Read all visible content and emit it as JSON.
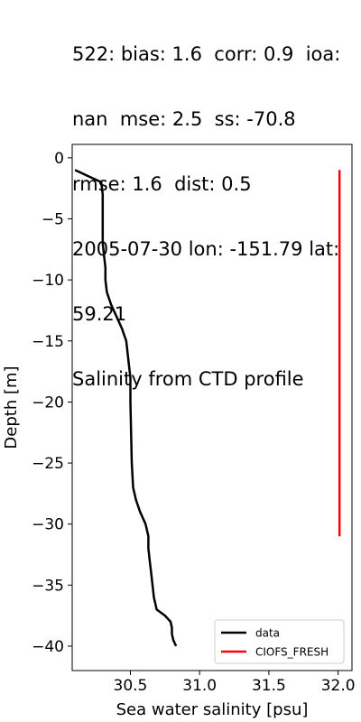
{
  "title_lines": [
    "522: bias: 1.6  corr: 0.9  ioa:",
    "nan  mse: 2.5  ss: -70.8",
    "rmse: 1.6  dist: 0.5",
    "2005-07-30 lon: -151.79 lat:",
    "59.21",
    "Salinity from CTD profile"
  ],
  "colors": {
    "data": "#000000",
    "model": "#ff0000"
  },
  "chart_data": {
    "type": "line",
    "title": "522: bias: 1.6  corr: 0.9  ioa: nan  mse: 2.5  ss: -70.8 rmse: 1.6  dist: 0.5 2005-07-30 lon: -151.79 lat: 59.21 Salinity from CTD profile",
    "xlabel": "Sea water salinity [psu]",
    "ylabel": "Depth [m]",
    "xlim": [
      30.08,
      32.1
    ],
    "ylim": [
      -42,
      1.1
    ],
    "xticks": [
      30.5,
      31.0,
      31.5,
      32.0
    ],
    "xtick_labels": [
      "30.5",
      "31.0",
      "31.5",
      "32.0"
    ],
    "yticks": [
      0,
      -5,
      -10,
      -15,
      -20,
      -25,
      -30,
      -35,
      -40
    ],
    "ytick_labels": [
      "0",
      "−5",
      "−10",
      "−15",
      "−20",
      "−25",
      "−30",
      "−35",
      "−40"
    ],
    "legend_position": "lower-right",
    "grid": false,
    "series": [
      {
        "name": "data",
        "x": [
          30.1,
          30.29,
          30.3,
          30.3,
          30.3,
          30.31,
          30.32,
          30.32,
          30.33,
          30.36,
          30.4,
          30.44,
          30.47,
          30.48,
          30.49,
          30.5,
          30.5,
          30.5,
          30.51,
          30.52,
          30.54,
          30.57,
          30.61,
          30.63,
          30.63,
          30.64,
          30.65,
          30.66,
          30.67,
          30.69,
          30.75,
          30.79,
          30.8,
          30.8,
          30.81,
          30.83
        ],
        "y": [
          -1,
          -2,
          -3,
          -5,
          -7,
          -8,
          -9,
          -10,
          -11,
          -12,
          -13,
          -14,
          -15,
          -16,
          -17,
          -18,
          -19,
          -20,
          -25,
          -27,
          -28,
          -29,
          -30,
          -31,
          -32,
          -33,
          -34,
          -35,
          -36,
          -37,
          -37.5,
          -38,
          -38.5,
          -39,
          -39.5,
          -40
        ]
      },
      {
        "name": "CIOFS_FRESH",
        "x": [
          32.01,
          32.01
        ],
        "y": [
          -1,
          -31
        ]
      }
    ]
  }
}
